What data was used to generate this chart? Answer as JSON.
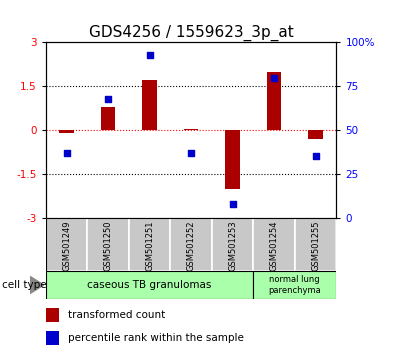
{
  "title": "GDS4256 / 1559623_3p_at",
  "samples": [
    "GSM501249",
    "GSM501250",
    "GSM501251",
    "GSM501252",
    "GSM501253",
    "GSM501254",
    "GSM501255"
  ],
  "red_values": [
    -0.1,
    0.8,
    1.7,
    0.05,
    -2.0,
    2.0,
    -0.3
  ],
  "blue_values": [
    37,
    68,
    93,
    37,
    8,
    80,
    35
  ],
  "ylim_left": [
    -3,
    3
  ],
  "ylim_right": [
    0,
    100
  ],
  "yticks_left": [
    -3,
    -1.5,
    0,
    1.5,
    3
  ],
  "ytick_labels_left": [
    "-3",
    "-1.5",
    "0",
    "1.5",
    "3"
  ],
  "yticks_right": [
    0,
    25,
    50,
    75,
    100
  ],
  "ytick_labels_right": [
    "0",
    "25",
    "50",
    "75",
    "100%"
  ],
  "hlines": [
    -1.5,
    0,
    1.5
  ],
  "hline_colors": [
    "black",
    "red",
    "black"
  ],
  "hline_styles": [
    "dotted",
    "dotted",
    "dotted"
  ],
  "bar_color": "#aa0000",
  "dot_color": "#0000cc",
  "bar_width": 0.35,
  "group1_label": "caseous TB granulomas",
  "group2_label": "normal lung\nparenchyma",
  "cell_type_label": "cell type",
  "legend_red": "transformed count",
  "legend_blue": "percentile rank within the sample",
  "bg_sample_color": "#c8c8c8",
  "group_color": "#aaffaa",
  "title_fontsize": 11,
  "tick_label_fontsize": 7.5
}
